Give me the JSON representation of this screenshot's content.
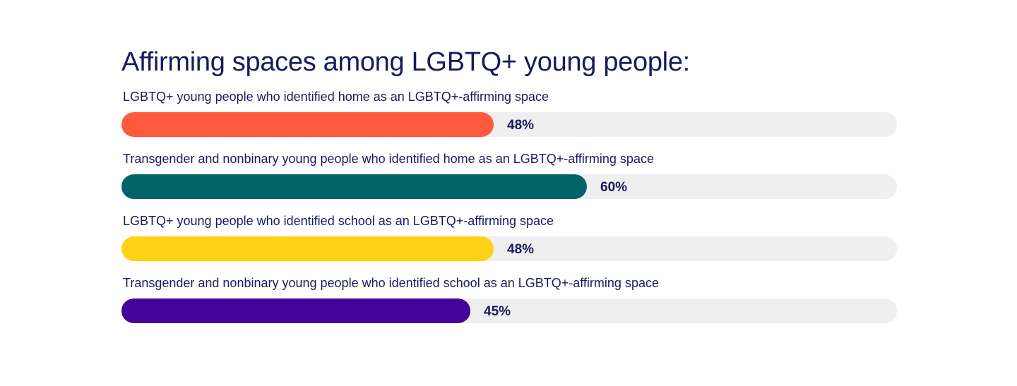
{
  "chart_data": {
    "type": "bar",
    "orientation": "horizontal",
    "title": "Affirming spaces among LGBTQ+ young people:",
    "xlim": [
      0,
      100
    ],
    "grid": false,
    "categories": [
      "LGBTQ+ young people who identified home as an LGBTQ+-affirming space",
      "Transgender and nonbinary young people who identified home as an LGBTQ+-affirming space",
      "LGBTQ+ young people who identified school as an LGBTQ+-affirming space",
      "Transgender and nonbinary young people who identified school as an LGBTQ+-affirming space"
    ],
    "values": [
      48,
      60,
      48,
      45
    ],
    "value_labels": [
      "48%",
      "60%",
      "48%",
      "45%"
    ],
    "colors": [
      "#ff5a3d",
      "#03636a",
      "#ffd215",
      "#44039a"
    ],
    "track_color": "#efefef",
    "text_color": "#1a1a5e"
  }
}
